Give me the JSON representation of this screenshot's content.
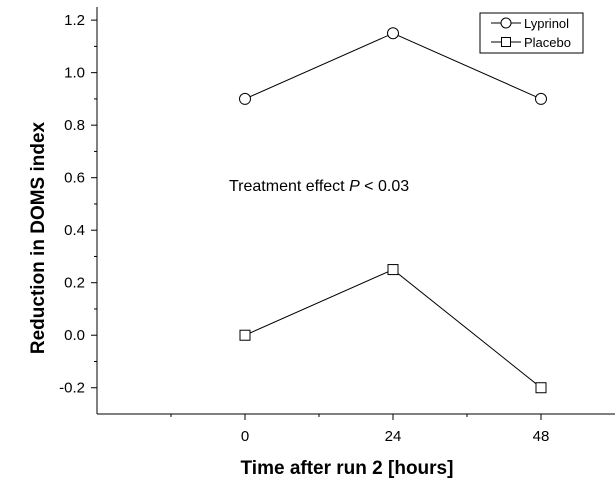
{
  "chart_data": {
    "type": "line",
    "title": "",
    "xlabel": "Time after run 2 [hours]",
    "ylabel": "Reduction in DOMS index",
    "x": [
      0,
      24,
      48
    ],
    "xlim": [
      -24,
      60
    ],
    "x_tick_labels": [
      "0",
      "24",
      "48"
    ],
    "ylim": [
      -0.3,
      1.25
    ],
    "y_tick_labels": [
      "-0.2",
      "0.0",
      "0.2",
      "0.4",
      "0.6",
      "0.8",
      "1.0",
      "1.2"
    ],
    "grid": false,
    "legend_position": "top-right",
    "annotation": {
      "prefix": "Treatment effect ",
      "italic": "P",
      "suffix": " < 0.03"
    },
    "series": [
      {
        "name": "Lyprinol",
        "marker": "circle",
        "values": [
          0.9,
          1.15,
          0.9
        ],
        "color": "#000000"
      },
      {
        "name": "Placebo",
        "marker": "square",
        "values": [
          0.0,
          0.25,
          -0.2
        ],
        "color": "#000000"
      }
    ]
  }
}
